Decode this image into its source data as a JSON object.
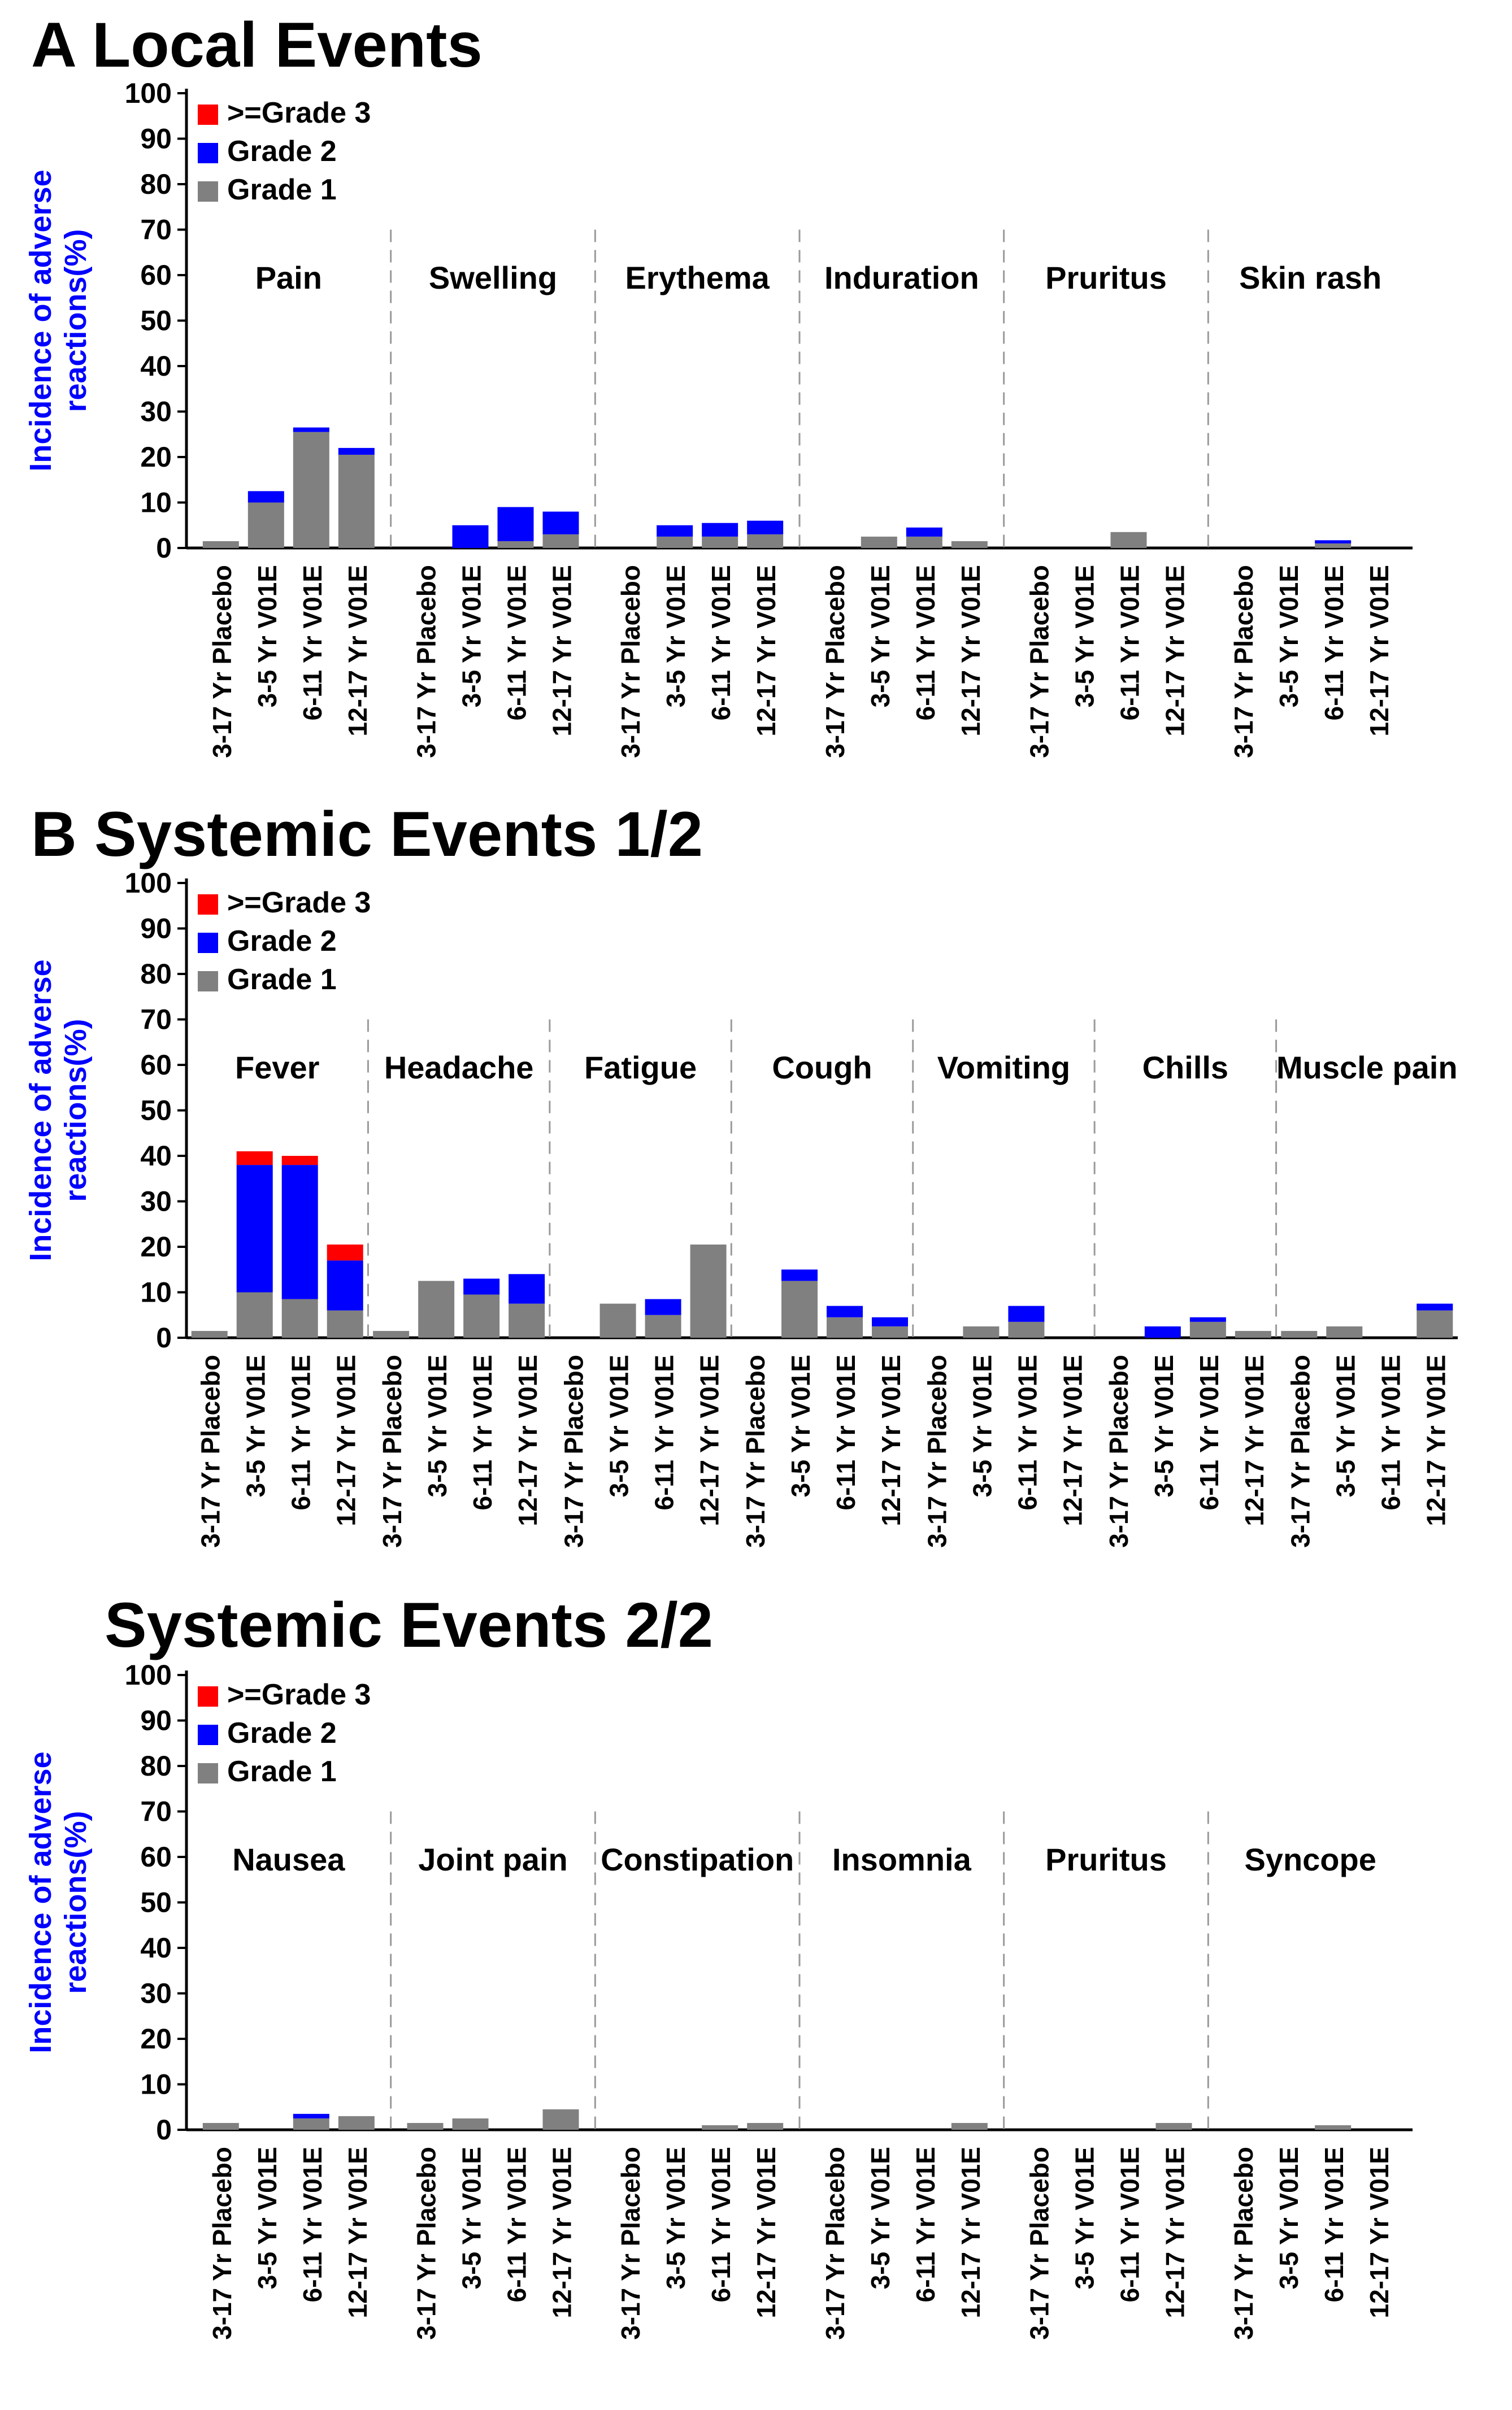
{
  "colors": {
    "grade1": "#808080",
    "grade2": "#0000ff",
    "grade3": "#ff0000",
    "ylabel": "#0000ff",
    "text": "#000000",
    "divider": "#9a9a9a"
  },
  "chart_data": [
    {
      "type": "bar",
      "stacked": true,
      "title": "A Local Events",
      "ylabel": "Incidence of adverse reactions(%)",
      "ylim": [
        0,
        100
      ],
      "yticks": [
        0,
        10,
        20,
        30,
        40,
        50,
        60,
        70,
        80,
        90,
        100
      ],
      "legend": [
        "Grade 1",
        "Grade 2",
        ">=Grade 3"
      ],
      "legend_labels": [
        ">=Grade 3",
        "Grade 2",
        "Grade 1"
      ],
      "legend_placement": "top-left",
      "categories": [
        "3-17 Yr Placebo",
        "3-5 Yr V01E",
        "6-11 Yr V01E",
        "12-17 Yr V01E"
      ],
      "groups": [
        {
          "name": "Pain",
          "grade1": [
            1.5,
            10,
            25.5,
            20.5
          ],
          "grade2": [
            0,
            2.5,
            1,
            1.5
          ],
          "grade3": [
            0,
            0,
            0,
            0
          ]
        },
        {
          "name": "Swelling",
          "grade1": [
            0,
            0,
            1.5,
            3
          ],
          "grade2": [
            0,
            5,
            7.5,
            5
          ],
          "grade3": [
            0,
            0,
            0,
            0
          ]
        },
        {
          "name": "Erythema",
          "grade1": [
            0,
            2.5,
            2.5,
            3
          ],
          "grade2": [
            0,
            2.5,
            3,
            3
          ],
          "grade3": [
            0,
            0,
            0,
            0
          ]
        },
        {
          "name": "Induration",
          "grade1": [
            0,
            2.5,
            2.5,
            1.5
          ],
          "grade2": [
            0,
            0,
            2,
            0
          ],
          "grade3": [
            0,
            0,
            0,
            0
          ]
        },
        {
          "name": "Pruritus",
          "grade1": [
            0,
            0,
            3.5,
            0
          ],
          "grade2": [
            0,
            0,
            0,
            0
          ],
          "grade3": [
            0,
            0,
            0,
            0
          ]
        },
        {
          "name": "Skin rash",
          "grade1": [
            0,
            0,
            1,
            0
          ],
          "grade2": [
            0,
            0,
            0.7,
            0
          ],
          "grade3": [
            0,
            0,
            0,
            0
          ]
        }
      ]
    },
    {
      "type": "bar",
      "stacked": true,
      "title": "B Systemic Events 1/2",
      "ylabel": "Incidence of adverse reactions(%)",
      "ylim": [
        0,
        100
      ],
      "yticks": [
        0,
        10,
        20,
        30,
        40,
        50,
        60,
        70,
        80,
        90,
        100
      ],
      "legend": [
        "Grade 1",
        "Grade 2",
        ">=Grade 3"
      ],
      "legend_labels": [
        ">=Grade 3",
        "Grade 2",
        "Grade 1"
      ],
      "legend_placement": "top-left",
      "categories": [
        "3-17 Yr Placebo",
        "3-5 Yr V01E",
        "6-11 Yr V01E",
        "12-17 Yr V01E"
      ],
      "groups": [
        {
          "name": "Fever",
          "grade1": [
            1.5,
            10,
            8.5,
            6
          ],
          "grade2": [
            0,
            28,
            29.5,
            11
          ],
          "grade3": [
            0,
            3,
            2,
            3.5
          ]
        },
        {
          "name": "Headache",
          "grade1": [
            1.5,
            12.5,
            9.5,
            7.5
          ],
          "grade2": [
            0,
            0,
            3.5,
            6.5
          ],
          "grade3": [
            0,
            0,
            0,
            0
          ]
        },
        {
          "name": "Fatigue",
          "grade1": [
            0,
            7.5,
            5,
            20.5
          ],
          "grade2": [
            0,
            0,
            3.5,
            0
          ],
          "grade3": [
            0,
            0,
            0,
            0
          ]
        },
        {
          "name": "Cough",
          "grade1": [
            0,
            12.5,
            4.5,
            2.5
          ],
          "grade2": [
            0,
            2.5,
            2.5,
            2
          ],
          "grade3": [
            0,
            0,
            0,
            0
          ]
        },
        {
          "name": "Vomiting",
          "grade1": [
            0,
            2.5,
            3.5,
            0
          ],
          "grade2": [
            0,
            0,
            3.5,
            0
          ],
          "grade3": [
            0,
            0,
            0,
            0
          ]
        },
        {
          "name": "Chills",
          "grade1": [
            0,
            0,
            3.5,
            1.5
          ],
          "grade2": [
            0,
            2.5,
            1,
            0
          ],
          "grade3": [
            0,
            0,
            0,
            0
          ]
        },
        {
          "name": "Muscle pain",
          "grade1": [
            1.5,
            2.5,
            0,
            6
          ],
          "grade2": [
            0,
            0,
            0,
            1.5
          ],
          "grade3": [
            0,
            0,
            0,
            0
          ]
        }
      ]
    },
    {
      "type": "bar",
      "stacked": true,
      "title": "Systemic Events 2/2",
      "ylabel": "Incidence of adverse reactions(%)",
      "ylim": [
        0,
        100
      ],
      "yticks": [
        0,
        10,
        20,
        30,
        40,
        50,
        60,
        70,
        80,
        90,
        100
      ],
      "legend": [
        "Grade 1",
        "Grade 2",
        ">=Grade 3"
      ],
      "legend_labels": [
        ">=Grade 3",
        "Grade 2",
        "Grade 1"
      ],
      "legend_placement": "top-left",
      "categories": [
        "3-17 Yr Placebo",
        "3-5 Yr V01E",
        "6-11 Yr V01E",
        "12-17 Yr V01E"
      ],
      "groups": [
        {
          "name": "Nausea",
          "grade1": [
            1.5,
            0,
            2.5,
            3
          ],
          "grade2": [
            0,
            0,
            1,
            0
          ],
          "grade3": [
            0,
            0,
            0,
            0
          ]
        },
        {
          "name": "Joint pain",
          "grade1": [
            1.5,
            2.5,
            0,
            4.5
          ],
          "grade2": [
            0,
            0,
            0,
            0
          ],
          "grade3": [
            0,
            0,
            0,
            0
          ]
        },
        {
          "name": "Constipation",
          "grade1": [
            0,
            0,
            1,
            1.5
          ],
          "grade2": [
            0,
            0,
            0,
            0
          ],
          "grade3": [
            0,
            0,
            0,
            0
          ]
        },
        {
          "name": "Insomnia",
          "grade1": [
            0,
            0,
            0,
            1.5
          ],
          "grade2": [
            0,
            0,
            0,
            0
          ],
          "grade3": [
            0,
            0,
            0,
            0
          ]
        },
        {
          "name": "Pruritus",
          "grade1": [
            0,
            0,
            0,
            1.5
          ],
          "grade2": [
            0,
            0,
            0,
            0
          ],
          "grade3": [
            0,
            0,
            0,
            0
          ]
        },
        {
          "name": "Syncope",
          "grade1": [
            0,
            0,
            1,
            0
          ],
          "grade2": [
            0,
            0,
            0,
            0
          ],
          "grade3": [
            0,
            0,
            0,
            0
          ]
        }
      ]
    }
  ]
}
